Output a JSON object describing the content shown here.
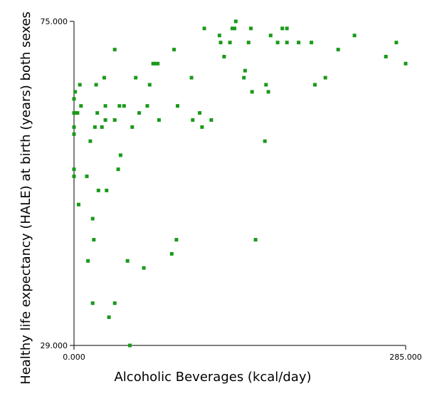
{
  "chart_data": {
    "type": "scatter",
    "title": "",
    "xlabel": "Alcoholic Beverages (kcal/day)",
    "ylabel": "Healthy life expectancy (HALE) at birth (years) both sexes",
    "xlim": [
      0,
      285
    ],
    "ylim": [
      29,
      75
    ],
    "x_tick_labels": [
      "0.000",
      "285.000"
    ],
    "y_tick_labels": [
      "29.000",
      "75.000"
    ],
    "grid": false,
    "legend": "none",
    "marker_color": "#1a9a1a",
    "series": [
      {
        "points": [
          {
            "x": 0,
            "y": 59
          },
          {
            "x": 0,
            "y": 60
          },
          {
            "x": 0,
            "y": 62
          },
          {
            "x": 0,
            "y": 64
          },
          {
            "x": 0,
            "y": 53
          },
          {
            "x": 0,
            "y": 54
          },
          {
            "x": 1,
            "y": 62
          },
          {
            "x": 1,
            "y": 65
          },
          {
            "x": 3,
            "y": 62
          },
          {
            "x": 4,
            "y": 49
          },
          {
            "x": 5,
            "y": 66
          },
          {
            "x": 6,
            "y": 63
          },
          {
            "x": 11,
            "y": 53
          },
          {
            "x": 12,
            "y": 41
          },
          {
            "x": 14,
            "y": 58
          },
          {
            "x": 16,
            "y": 47
          },
          {
            "x": 16,
            "y": 35
          },
          {
            "x": 17,
            "y": 44
          },
          {
            "x": 18,
            "y": 60
          },
          {
            "x": 19,
            "y": 66
          },
          {
            "x": 20,
            "y": 62
          },
          {
            "x": 21,
            "y": 51
          },
          {
            "x": 24,
            "y": 60
          },
          {
            "x": 26,
            "y": 67
          },
          {
            "x": 27,
            "y": 63
          },
          {
            "x": 27,
            "y": 61
          },
          {
            "x": 28,
            "y": 51
          },
          {
            "x": 30,
            "y": 33
          },
          {
            "x": 35,
            "y": 35
          },
          {
            "x": 35,
            "y": 71
          },
          {
            "x": 35,
            "y": 61
          },
          {
            "x": 38,
            "y": 54
          },
          {
            "x": 39,
            "y": 63
          },
          {
            "x": 40,
            "y": 56
          },
          {
            "x": 43,
            "y": 63
          },
          {
            "x": 46,
            "y": 41
          },
          {
            "x": 48,
            "y": 29
          },
          {
            "x": 50,
            "y": 60
          },
          {
            "x": 53,
            "y": 67
          },
          {
            "x": 56,
            "y": 62
          },
          {
            "x": 60,
            "y": 40
          },
          {
            "x": 63,
            "y": 63
          },
          {
            "x": 65,
            "y": 66
          },
          {
            "x": 68,
            "y": 69
          },
          {
            "x": 70,
            "y": 69
          },
          {
            "x": 72,
            "y": 69
          },
          {
            "x": 73,
            "y": 61
          },
          {
            "x": 84,
            "y": 42
          },
          {
            "x": 86,
            "y": 71
          },
          {
            "x": 88,
            "y": 44
          },
          {
            "x": 89,
            "y": 63
          },
          {
            "x": 101,
            "y": 67
          },
          {
            "x": 102,
            "y": 61
          },
          {
            "x": 108,
            "y": 62
          },
          {
            "x": 110,
            "y": 60
          },
          {
            "x": 112,
            "y": 74
          },
          {
            "x": 118,
            "y": 61
          },
          {
            "x": 125,
            "y": 73
          },
          {
            "x": 126,
            "y": 72
          },
          {
            "x": 129,
            "y": 70
          },
          {
            "x": 134,
            "y": 72
          },
          {
            "x": 136,
            "y": 74
          },
          {
            "x": 138,
            "y": 74
          },
          {
            "x": 139,
            "y": 75
          },
          {
            "x": 146,
            "y": 67
          },
          {
            "x": 147,
            "y": 68
          },
          {
            "x": 150,
            "y": 72
          },
          {
            "x": 152,
            "y": 74
          },
          {
            "x": 153,
            "y": 65
          },
          {
            "x": 156,
            "y": 44
          },
          {
            "x": 164,
            "y": 58
          },
          {
            "x": 165,
            "y": 66
          },
          {
            "x": 167,
            "y": 65
          },
          {
            "x": 169,
            "y": 73
          },
          {
            "x": 175,
            "y": 72
          },
          {
            "x": 179,
            "y": 74
          },
          {
            "x": 183,
            "y": 74
          },
          {
            "x": 183,
            "y": 72
          },
          {
            "x": 193,
            "y": 72
          },
          {
            "x": 204,
            "y": 72
          },
          {
            "x": 207,
            "y": 66
          },
          {
            "x": 216,
            "y": 67
          },
          {
            "x": 227,
            "y": 71
          },
          {
            "x": 241,
            "y": 73
          },
          {
            "x": 268,
            "y": 70
          },
          {
            "x": 277,
            "y": 72
          },
          {
            "x": 285,
            "y": 69
          }
        ]
      }
    ]
  }
}
